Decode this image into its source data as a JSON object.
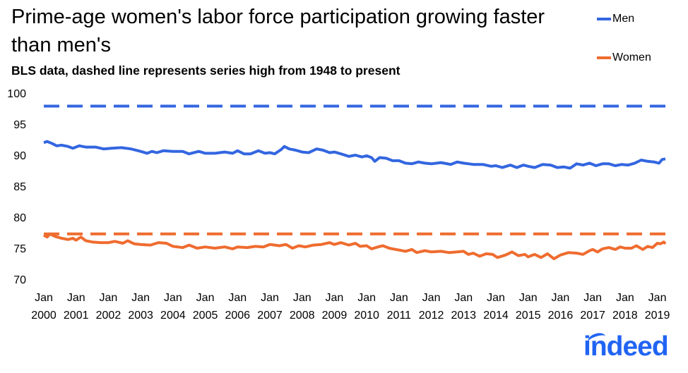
{
  "title": "Prime-age women's labor force participation growing faster than men's",
  "subtitle": "BLS data, dashed line represents series high from 1948 to present",
  "logo": "indeed",
  "chart_data": {
    "type": "line",
    "ylim": [
      70,
      100
    ],
    "yticks": [
      70,
      75,
      80,
      85,
      90,
      95,
      100
    ],
    "xlim": [
      2000.0,
      2019.25
    ],
    "xticks": [
      {
        "x": 2000,
        "top": "Jan",
        "bottom": "2000"
      },
      {
        "x": 2001,
        "top": "Jan",
        "bottom": "2001"
      },
      {
        "x": 2002,
        "top": "Jan",
        "bottom": "2002"
      },
      {
        "x": 2003,
        "top": "Jan",
        "bottom": "2003"
      },
      {
        "x": 2004,
        "top": "Jan",
        "bottom": "2004"
      },
      {
        "x": 2005,
        "top": "Jan",
        "bottom": "2005"
      },
      {
        "x": 2006,
        "top": "Jan",
        "bottom": "2006"
      },
      {
        "x": 2007,
        "top": "Jan",
        "bottom": "2007"
      },
      {
        "x": 2008,
        "top": "Jan",
        "bottom": "2008"
      },
      {
        "x": 2009,
        "top": "Jan",
        "bottom": "2009"
      },
      {
        "x": 2010,
        "top": "Jan",
        "bottom": "2010"
      },
      {
        "x": 2011,
        "top": "Jan",
        "bottom": "2011"
      },
      {
        "x": 2012,
        "top": "Jan",
        "bottom": "2012"
      },
      {
        "x": 2013,
        "top": "Jan",
        "bottom": "2013"
      },
      {
        "x": 2014,
        "top": "Jan",
        "bottom": "2014"
      },
      {
        "x": 2015,
        "top": "Jan",
        "bottom": "2015"
      },
      {
        "x": 2016,
        "top": "Jan",
        "bottom": "2016"
      },
      {
        "x": 2017,
        "top": "Jan",
        "bottom": "2017"
      },
      {
        "x": 2018,
        "top": "Jan",
        "bottom": "2018"
      },
      {
        "x": 2019,
        "top": "Jan",
        "bottom": "2019"
      }
    ],
    "grid": false,
    "legend_position": "top-right",
    "series": [
      {
        "name": "Men",
        "color": "#3366e0",
        "style": "solid",
        "points": [
          [
            2000.0,
            92.0
          ],
          [
            2000.1,
            92.2
          ],
          [
            2000.25,
            91.9
          ],
          [
            2000.4,
            91.5
          ],
          [
            2000.55,
            91.6
          ],
          [
            2000.75,
            91.4
          ],
          [
            2000.9,
            91.1
          ],
          [
            2001.1,
            91.5
          ],
          [
            2001.3,
            91.3
          ],
          [
            2001.6,
            91.3
          ],
          [
            2001.85,
            91.0
          ],
          [
            2002.1,
            91.1
          ],
          [
            2002.4,
            91.2
          ],
          [
            2002.7,
            91.0
          ],
          [
            2003.0,
            90.6
          ],
          [
            2003.2,
            90.3
          ],
          [
            2003.35,
            90.6
          ],
          [
            2003.5,
            90.4
          ],
          [
            2003.7,
            90.7
          ],
          [
            2004.0,
            90.6
          ],
          [
            2004.3,
            90.6
          ],
          [
            2004.5,
            90.2
          ],
          [
            2004.8,
            90.6
          ],
          [
            2005.0,
            90.3
          ],
          [
            2005.3,
            90.3
          ],
          [
            2005.6,
            90.5
          ],
          [
            2005.85,
            90.3
          ],
          [
            2006.0,
            90.7
          ],
          [
            2006.2,
            90.2
          ],
          [
            2006.4,
            90.2
          ],
          [
            2006.65,
            90.7
          ],
          [
            2006.85,
            90.3
          ],
          [
            2007.0,
            90.4
          ],
          [
            2007.15,
            90.2
          ],
          [
            2007.35,
            90.9
          ],
          [
            2007.45,
            91.4
          ],
          [
            2007.6,
            91.0
          ],
          [
            2007.8,
            90.8
          ],
          [
            2008.0,
            90.5
          ],
          [
            2008.2,
            90.4
          ],
          [
            2008.45,
            91.0
          ],
          [
            2008.65,
            90.8
          ],
          [
            2008.85,
            90.4
          ],
          [
            2009.0,
            90.5
          ],
          [
            2009.2,
            90.2
          ],
          [
            2009.45,
            89.8
          ],
          [
            2009.65,
            90.0
          ],
          [
            2009.85,
            89.7
          ],
          [
            2010.0,
            89.9
          ],
          [
            2010.15,
            89.6
          ],
          [
            2010.25,
            89.0
          ],
          [
            2010.4,
            89.6
          ],
          [
            2010.6,
            89.5
          ],
          [
            2010.8,
            89.1
          ],
          [
            2011.0,
            89.1
          ],
          [
            2011.2,
            88.7
          ],
          [
            2011.4,
            88.6
          ],
          [
            2011.6,
            88.9
          ],
          [
            2011.8,
            88.7
          ],
          [
            2012.0,
            88.6
          ],
          [
            2012.3,
            88.8
          ],
          [
            2012.6,
            88.5
          ],
          [
            2012.8,
            88.9
          ],
          [
            2013.0,
            88.7
          ],
          [
            2013.3,
            88.5
          ],
          [
            2013.6,
            88.5
          ],
          [
            2013.85,
            88.2
          ],
          [
            2014.0,
            88.3
          ],
          [
            2014.2,
            88.0
          ],
          [
            2014.45,
            88.4
          ],
          [
            2014.65,
            88.0
          ],
          [
            2014.85,
            88.4
          ],
          [
            2015.0,
            88.2
          ],
          [
            2015.2,
            88.0
          ],
          [
            2015.45,
            88.5
          ],
          [
            2015.7,
            88.4
          ],
          [
            2015.9,
            88.0
          ],
          [
            2016.1,
            88.1
          ],
          [
            2016.3,
            87.9
          ],
          [
            2016.5,
            88.6
          ],
          [
            2016.7,
            88.4
          ],
          [
            2016.9,
            88.7
          ],
          [
            2017.1,
            88.3
          ],
          [
            2017.3,
            88.6
          ],
          [
            2017.5,
            88.6
          ],
          [
            2017.7,
            88.3
          ],
          [
            2017.9,
            88.5
          ],
          [
            2018.1,
            88.4
          ],
          [
            2018.3,
            88.7
          ],
          [
            2018.5,
            89.2
          ],
          [
            2018.7,
            89.0
          ],
          [
            2018.9,
            88.9
          ],
          [
            2019.05,
            88.7
          ],
          [
            2019.15,
            89.3
          ],
          [
            2019.25,
            89.4
          ]
        ]
      },
      {
        "name": "Men series high",
        "color": "#3366e0",
        "style": "dashed",
        "points": [
          [
            2000.0,
            97.9
          ],
          [
            2019.25,
            97.9
          ]
        ]
      },
      {
        "name": "Women",
        "color": "#ef6c2f",
        "style": "solid",
        "points": [
          [
            2000.0,
            77.1
          ],
          [
            2000.1,
            76.8
          ],
          [
            2000.2,
            77.3
          ],
          [
            2000.35,
            76.9
          ],
          [
            2000.55,
            76.6
          ],
          [
            2000.75,
            76.4
          ],
          [
            2000.9,
            76.6
          ],
          [
            2001.0,
            76.3
          ],
          [
            2001.15,
            76.8
          ],
          [
            2001.3,
            76.2
          ],
          [
            2001.5,
            76.0
          ],
          [
            2001.75,
            75.9
          ],
          [
            2002.0,
            75.9
          ],
          [
            2002.2,
            76.1
          ],
          [
            2002.45,
            75.8
          ],
          [
            2002.6,
            76.2
          ],
          [
            2002.8,
            75.7
          ],
          [
            2003.0,
            75.6
          ],
          [
            2003.3,
            75.5
          ],
          [
            2003.55,
            75.9
          ],
          [
            2003.8,
            75.8
          ],
          [
            2004.0,
            75.3
          ],
          [
            2004.3,
            75.1
          ],
          [
            2004.5,
            75.5
          ],
          [
            2004.75,
            75.0
          ],
          [
            2005.0,
            75.2
          ],
          [
            2005.3,
            75.0
          ],
          [
            2005.6,
            75.2
          ],
          [
            2005.85,
            74.9
          ],
          [
            2006.0,
            75.2
          ],
          [
            2006.3,
            75.1
          ],
          [
            2006.55,
            75.3
          ],
          [
            2006.8,
            75.2
          ],
          [
            2007.0,
            75.6
          ],
          [
            2007.3,
            75.4
          ],
          [
            2007.5,
            75.6
          ],
          [
            2007.7,
            75.0
          ],
          [
            2007.9,
            75.4
          ],
          [
            2008.1,
            75.2
          ],
          [
            2008.35,
            75.5
          ],
          [
            2008.6,
            75.6
          ],
          [
            2008.85,
            75.9
          ],
          [
            2009.0,
            75.6
          ],
          [
            2009.2,
            75.9
          ],
          [
            2009.45,
            75.5
          ],
          [
            2009.65,
            75.8
          ],
          [
            2009.8,
            75.3
          ],
          [
            2010.0,
            75.4
          ],
          [
            2010.15,
            74.9
          ],
          [
            2010.35,
            75.2
          ],
          [
            2010.5,
            75.4
          ],
          [
            2010.7,
            75.0
          ],
          [
            2010.9,
            74.8
          ],
          [
            2011.0,
            74.7
          ],
          [
            2011.2,
            74.5
          ],
          [
            2011.4,
            74.8
          ],
          [
            2011.55,
            74.3
          ],
          [
            2011.8,
            74.6
          ],
          [
            2012.0,
            74.4
          ],
          [
            2012.3,
            74.5
          ],
          [
            2012.55,
            74.3
          ],
          [
            2012.8,
            74.4
          ],
          [
            2013.0,
            74.5
          ],
          [
            2013.15,
            74.0
          ],
          [
            2013.3,
            74.2
          ],
          [
            2013.5,
            73.7
          ],
          [
            2013.7,
            74.1
          ],
          [
            2013.9,
            74.0
          ],
          [
            2014.05,
            73.5
          ],
          [
            2014.3,
            73.9
          ],
          [
            2014.5,
            74.4
          ],
          [
            2014.7,
            73.8
          ],
          [
            2014.9,
            74.0
          ],
          [
            2015.0,
            73.6
          ],
          [
            2015.2,
            74.0
          ],
          [
            2015.4,
            73.5
          ],
          [
            2015.6,
            74.1
          ],
          [
            2015.8,
            73.3
          ],
          [
            2016.0,
            73.9
          ],
          [
            2016.25,
            74.3
          ],
          [
            2016.5,
            74.2
          ],
          [
            2016.7,
            74.0
          ],
          [
            2016.9,
            74.6
          ],
          [
            2017.0,
            74.8
          ],
          [
            2017.15,
            74.4
          ],
          [
            2017.3,
            74.9
          ],
          [
            2017.5,
            75.1
          ],
          [
            2017.7,
            74.8
          ],
          [
            2017.85,
            75.2
          ],
          [
            2018.0,
            75.0
          ],
          [
            2018.2,
            75.0
          ],
          [
            2018.35,
            75.4
          ],
          [
            2018.55,
            74.8
          ],
          [
            2018.7,
            75.3
          ],
          [
            2018.85,
            75.1
          ],
          [
            2019.0,
            75.8
          ],
          [
            2019.1,
            75.7
          ],
          [
            2019.2,
            76.0
          ],
          [
            2019.25,
            75.7
          ]
        ]
      },
      {
        "name": "Women series high",
        "color": "#ef6c2f",
        "style": "dashed",
        "points": [
          [
            2000.0,
            77.3
          ],
          [
            2019.25,
            77.3
          ]
        ]
      }
    ],
    "legend": [
      {
        "label": "Men",
        "color": "#3366e0"
      },
      {
        "label": "Women",
        "color": "#ef6c2f"
      }
    ]
  }
}
